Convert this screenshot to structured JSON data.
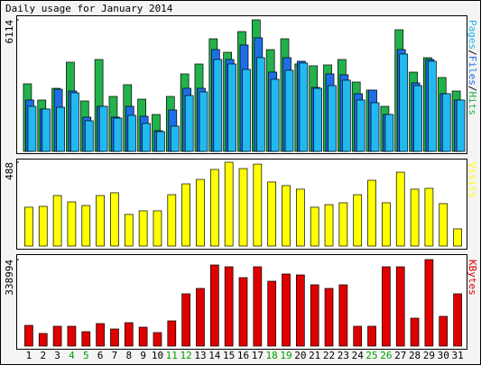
{
  "title": "Daily usage for January 2014",
  "legend_separator": "/",
  "weekend_color": "#00a000",
  "weekend_indices": [
    3,
    4,
    10,
    11,
    17,
    18,
    24,
    25
  ],
  "chart_data": [
    {
      "type": "bar",
      "ylim": [
        0,
        6114
      ],
      "yticks": [
        6114
      ],
      "series": [
        {
          "name": "Pages",
          "color": "#22b8f0",
          "values": [
            2095,
            1969,
            2053,
            2723,
            1424,
            2095,
            1550,
            1676,
            1299,
            922,
            1173,
            2597,
            2765,
            4273,
            4064,
            3812,
            4357,
            3352,
            3771,
            4106,
            2933,
            3058,
            3310,
            2388,
            2262,
            1718,
            4525,
            3058,
            4190,
            2681,
            2388
          ]
        },
        {
          "name": "Files",
          "color": "#1e6fe6",
          "values": [
            2388,
            1969,
            2891,
            2807,
            1592,
            2095,
            1592,
            2095,
            1634,
            964,
            1927,
            2933,
            2933,
            4734,
            4273,
            4944,
            5279,
            3687,
            4357,
            4190,
            2975,
            3603,
            3561,
            2681,
            2849,
            1718,
            4734,
            3184,
            4273,
            2681,
            2388
          ]
        },
        {
          "name": "Hits",
          "color": "#22b24c",
          "values": [
            3141,
            2387,
            2932,
            4146,
            2345,
            4271,
            2554,
            3099,
            2429,
            1717,
            2554,
            3601,
            4062,
            5234,
            4606,
            5569,
            6114,
            4732,
            5234,
            4062,
            3978,
            4020,
            4271,
            3224,
            2847,
            2094,
            5653,
            3685,
            4355,
            3434,
            2806
          ]
        }
      ]
    },
    {
      "type": "bar",
      "ylim": [
        0,
        488
      ],
      "yticks": [
        488
      ],
      "series": [
        {
          "name": "Visits",
          "color": "#ffff00",
          "values": [
            226,
            231,
            294,
            257,
            236,
            294,
            310,
            184,
            205,
            205,
            299,
            362,
            388,
            446,
            488,
            451,
            477,
            373,
            352,
            331,
            226,
            241,
            252,
            299,
            383,
            252,
            430,
            331,
            336,
            247,
            100
          ]
        }
      ]
    },
    {
      "type": "bar",
      "ylim": [
        0,
        338994
      ],
      "yticks": [
        338994
      ],
      "categories": [
        "1",
        "2",
        "3",
        "4",
        "5",
        "6",
        "7",
        "8",
        "9",
        "10",
        "11",
        "12",
        "13",
        "14",
        "15",
        "16",
        "17",
        "18",
        "19",
        "20",
        "21",
        "22",
        "23",
        "24",
        "25",
        "26",
        "27",
        "28",
        "29",
        "30",
        "31"
      ],
      "series": [
        {
          "name": "KBytes",
          "color": "#e00000",
          "values": [
            81213,
            49434,
            77682,
            77682,
            56496,
            88275,
            67089,
            91806,
            74151,
            52965,
            98868,
            204798,
            225984,
            317790,
            310728,
            268356,
            310728,
            254232,
            282480,
            278949,
            240108,
            225984,
            240108,
            77682,
            77682,
            310728,
            310728,
            109461,
            338994,
            116523,
            204798
          ]
        }
      ]
    }
  ]
}
